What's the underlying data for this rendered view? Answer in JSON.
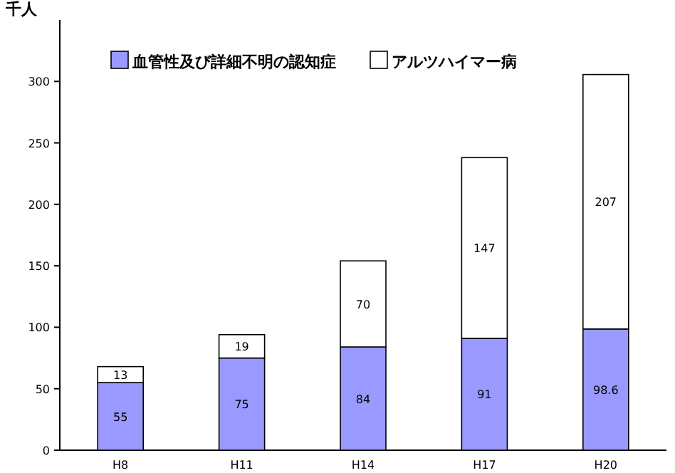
{
  "chart_data": {
    "type": "bar",
    "stacked": true,
    "ylabel": "千人",
    "categories": [
      "H8",
      "H11",
      "H14",
      "H17",
      "H20"
    ],
    "series": [
      {
        "name": "血管性及び詳細不明の認知症",
        "color": "#9999ff",
        "values": [
          55,
          75,
          84,
          91,
          98.6
        ]
      },
      {
        "name": "アルツハイマー病",
        "color": "#ffffff",
        "values": [
          13,
          19,
          70,
          147,
          207
        ]
      }
    ],
    "ylim": [
      0,
      350
    ],
    "yticks": [
      0,
      50,
      100,
      150,
      200,
      250,
      300
    ],
    "data_labels": true,
    "legend": "top left",
    "grid": false
  }
}
